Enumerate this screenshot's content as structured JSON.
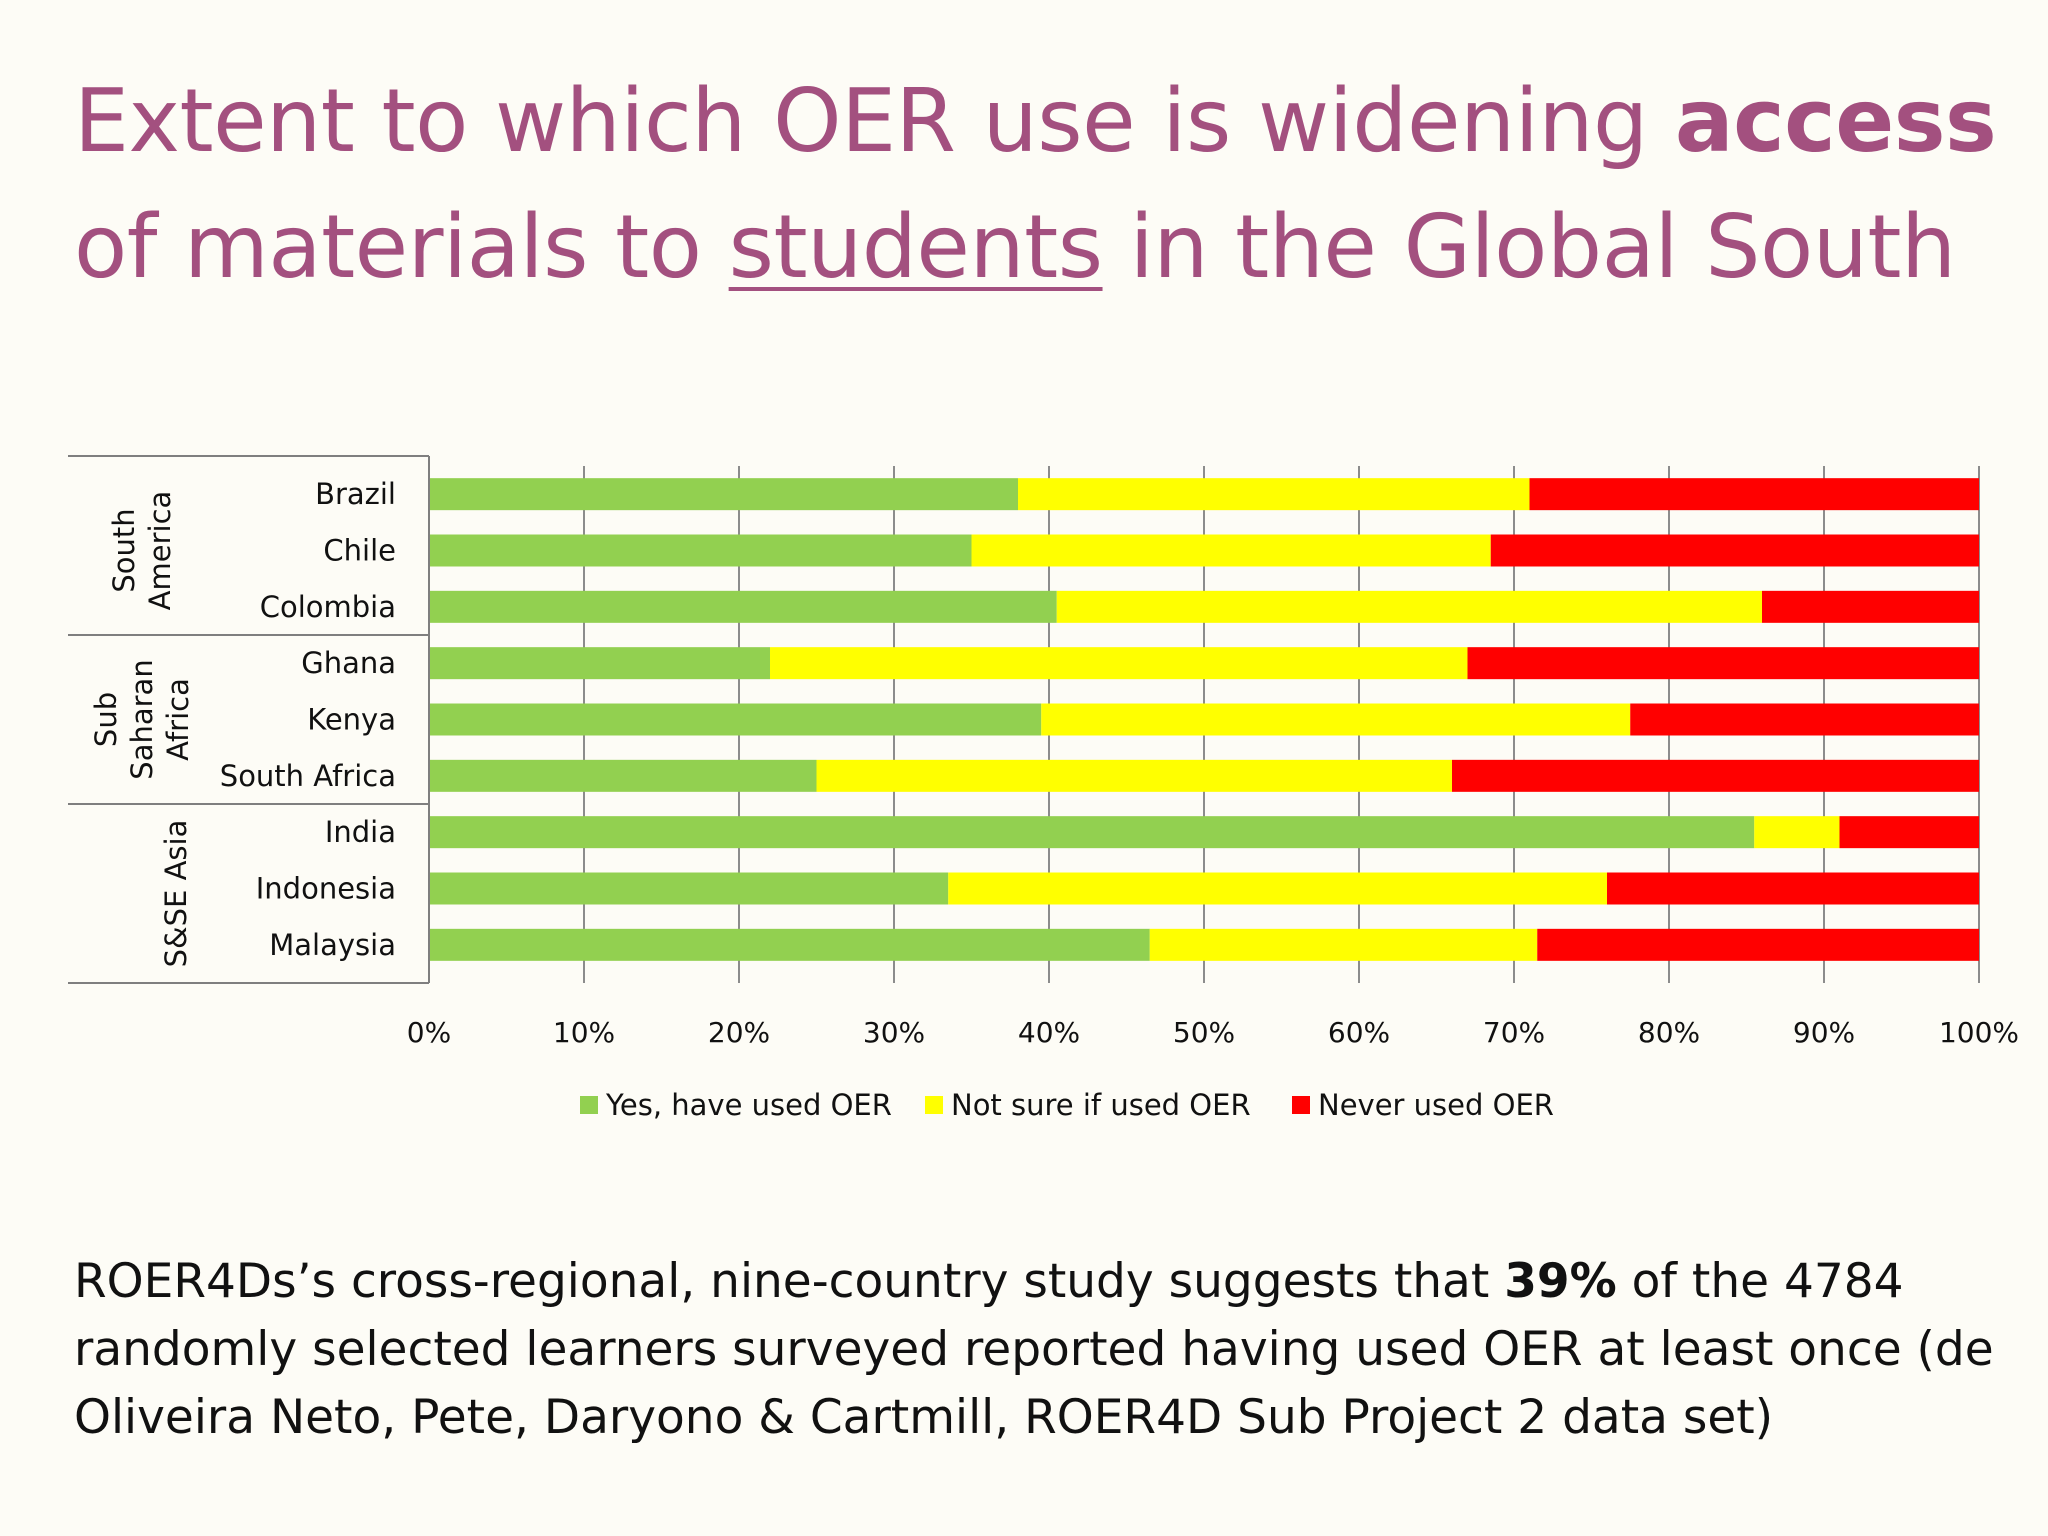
{
  "slide": {
    "title_part1": "Extent to which OER use is widening ",
    "title_bold": "access",
    "title_part2": "of materials to ",
    "title_underline": "students",
    "title_part3": " in the Global South",
    "body_part1": "ROER4Ds’s cross-regional, nine-country study suggests that ",
    "body_bold": "39%",
    "body_part2": " of the 4784 randomly selected learners surveyed reported having used OER at least once (de Oliveira Neto, Pete, Daryono & Cartmill, ROER4D Sub Project 2 data set)"
  },
  "chart_data": {
    "type": "bar",
    "orientation": "horizontal",
    "stacked": "percent",
    "groups": [
      {
        "name": "South America",
        "label_lines": [
          "South",
          "America"
        ],
        "categories": [
          "Brazil",
          "Chile",
          "Colombia"
        ]
      },
      {
        "name": "Sub Saharan Africa",
        "label_lines": [
          "Sub",
          "Saharan",
          "Africa"
        ],
        "categories": [
          "Ghana",
          "Kenya",
          "South Africa"
        ]
      },
      {
        "name": "S&SE Asia",
        "label_lines": [
          "S&SE Asia"
        ],
        "categories": [
          "India",
          "Indonesia",
          "Malaysia"
        ]
      }
    ],
    "categories": [
      "Brazil",
      "Chile",
      "Colombia",
      "Ghana",
      "Kenya",
      "South Africa",
      "India",
      "Indonesia",
      "Malaysia"
    ],
    "series": [
      {
        "name": "Yes, have used OER",
        "color": "#92d050",
        "values": [
          38,
          35,
          40.5,
          22,
          39.5,
          25,
          85.5,
          33.5,
          46.5
        ]
      },
      {
        "name": "Not sure if used OER",
        "color": "#ffff00",
        "values": [
          33,
          33.5,
          45.5,
          45,
          38,
          41,
          5.5,
          42.5,
          25
        ]
      },
      {
        "name": "Never used OER",
        "color": "#ff0000",
        "values": [
          29,
          31.5,
          14,
          33,
          22.5,
          34,
          9,
          24,
          28.5
        ]
      }
    ],
    "xlim": [
      0,
      100
    ],
    "x_ticks": [
      "0%",
      "10%",
      "20%",
      "30%",
      "40%",
      "50%",
      "60%",
      "70%",
      "80%",
      "90%",
      "100%"
    ],
    "grid": true,
    "legend": "bottom"
  }
}
